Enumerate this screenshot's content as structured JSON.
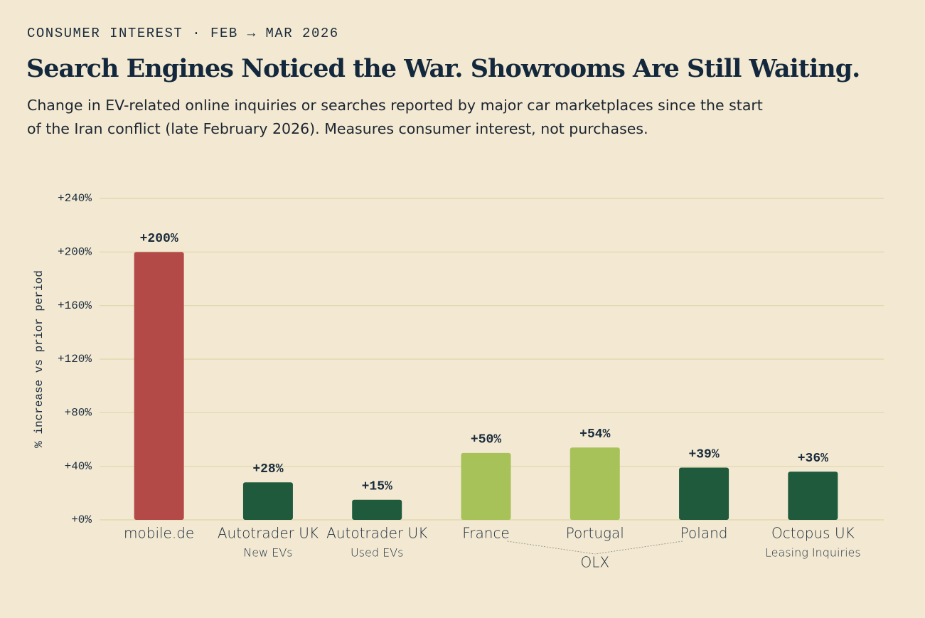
{
  "chart_data": {
    "type": "bar",
    "eyebrow": "CONSUMER INTEREST · FEB → MAR 2026",
    "title": "Search Engines Noticed the War. Showrooms Are Still Waiting.",
    "subtitle": "Change in EV-related online inquiries or searches reported by major car marketplaces since the start of the Iran conflict (late February 2026). Measures consumer interest, not purchases.",
    "y_label": "% increase vs prior period",
    "categories": [
      "mobile.de",
      "Autotrader UK",
      "Autotrader UK",
      "France",
      "Portugal",
      "Poland",
      "Octopus UK"
    ],
    "sublabels": [
      null,
      "New EVs",
      "Used EVs",
      null,
      null,
      null,
      "Leasing Inquiries"
    ],
    "groups": [
      {
        "label": "OLX",
        "categories": [
          "France",
          "Portugal",
          "Poland"
        ]
      }
    ],
    "values": [
      200,
      28,
      15,
      50,
      54,
      39,
      36
    ],
    "value_labels": [
      "+200%",
      "+28%",
      "+15%",
      "+50%",
      "+54%",
      "+39%",
      "+36%"
    ],
    "colors": [
      "#b34a47",
      "#1f5a3c",
      "#1f5a3c",
      "#a8c25a",
      "#a8c25a",
      "#1f5a3c",
      "#1f5a3c"
    ],
    "ylim": [
      0,
      240
    ],
    "yticks": [
      {
        "value": 0,
        "label": "+0%"
      },
      {
        "value": 40,
        "label": "+40%"
      },
      {
        "value": 80,
        "label": "+80%"
      },
      {
        "value": 120,
        "label": "+120%"
      },
      {
        "value": 160,
        "label": "+160%"
      },
      {
        "value": 200,
        "label": "+200%"
      },
      {
        "value": 240,
        "label": "+240%"
      }
    ],
    "grid": true
  }
}
